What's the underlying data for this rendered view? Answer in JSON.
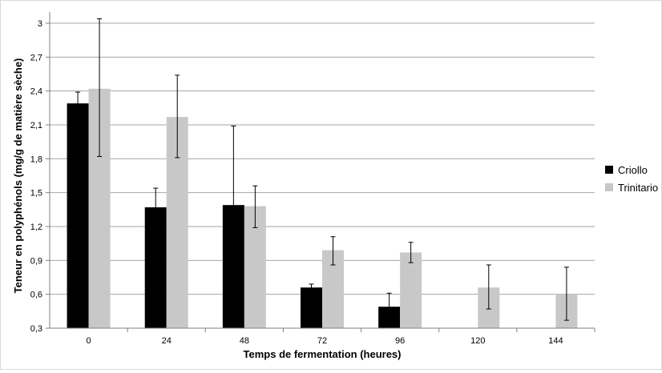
{
  "chart_data": {
    "type": "bar",
    "title": "",
    "xlabel": "Temps de fermentation (heures)",
    "ylabel": "Teneur en polyphénols (mg/g de matière sèche)",
    "categories": [
      "0",
      "24",
      "48",
      "72",
      "96",
      "120",
      "144"
    ],
    "ylim": [
      0.3,
      3.0
    ],
    "yticks": [
      "0,3",
      "0,6",
      "0,9",
      "1,2",
      "1,5",
      "1,8",
      "2,1",
      "2,4",
      "2,7",
      "3"
    ],
    "ytick_values": [
      0.3,
      0.6,
      0.9,
      1.2,
      1.5,
      1.8,
      2.1,
      2.4,
      2.7,
      3.0
    ],
    "grid": true,
    "legend_position": "right",
    "series": [
      {
        "name": "Criollo",
        "color": "#000000",
        "values": [
          2.29,
          1.37,
          1.39,
          0.66,
          0.49,
          null,
          null
        ],
        "err_low": [
          2.19,
          1.21,
          0.69,
          0.63,
          0.38,
          null,
          null
        ],
        "err_high": [
          2.39,
          1.54,
          2.09,
          0.69,
          0.61,
          null,
          null
        ]
      },
      {
        "name": "Trinitario",
        "color": "#c8c8c8",
        "values": [
          2.42,
          2.17,
          1.38,
          0.99,
          0.97,
          0.66,
          0.6
        ],
        "err_low": [
          1.82,
          1.81,
          1.19,
          0.86,
          0.88,
          0.47,
          0.37
        ],
        "err_high": [
          3.04,
          2.54,
          1.56,
          1.11,
          1.06,
          0.86,
          0.84
        ]
      }
    ]
  }
}
